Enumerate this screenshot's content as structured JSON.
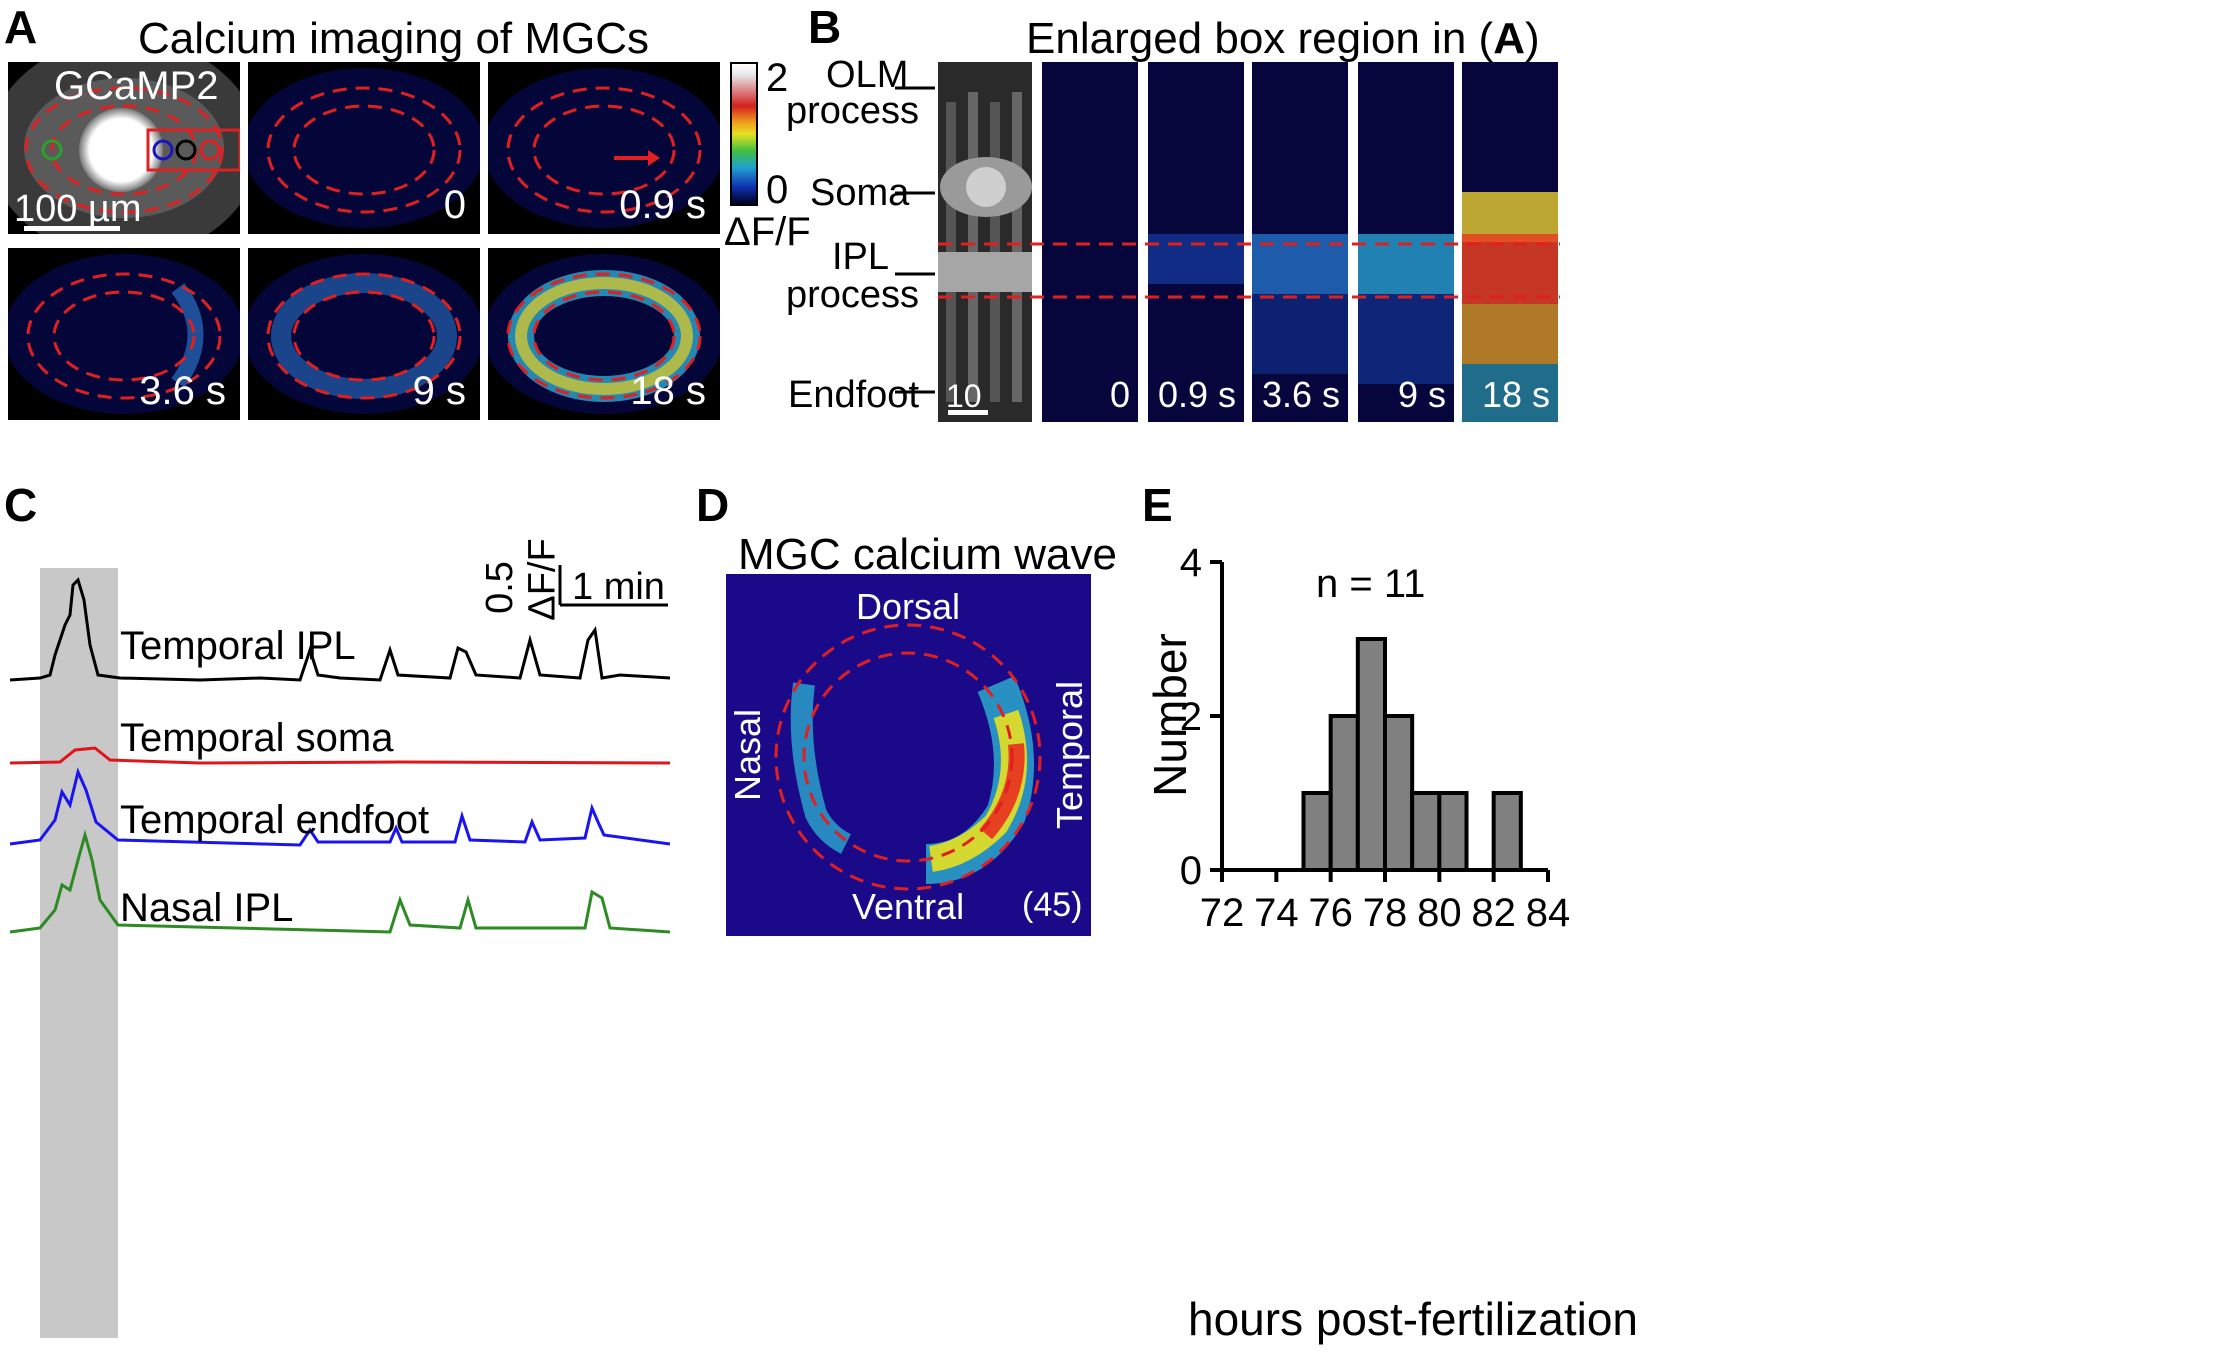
{
  "panels": {
    "A": {
      "label": "A",
      "title": "Calcium imaging of MGCs",
      "overlay_label": "GCaMP2",
      "scale_bar": "100 µm",
      "frames": [
        "0",
        "0.9 s",
        "3.6 s",
        "9 s",
        "18 s"
      ],
      "colorbar": {
        "max": "2",
        "min": "0",
        "unit": "ΔF/F"
      }
    },
    "B": {
      "label": "B",
      "title_prefix": "Enlarged box region in (",
      "title_ref": "A",
      "title_suffix": ")",
      "layers": [
        "OLM",
        "process",
        "Soma",
        "IPL",
        "process",
        "Endfoot"
      ],
      "scale_bar": "10 µm",
      "frames": [
        "0",
        "0.9 s",
        "3.6 s",
        "9 s",
        "18 s"
      ]
    },
    "C": {
      "label": "C",
      "scale_y": "0.5",
      "scale_y_unit": "ΔF/F",
      "scale_x": "1 min",
      "traces": [
        {
          "name": "Temporal IPL",
          "color": "#000000"
        },
        {
          "name": "Temporal soma",
          "color": "#e0141b"
        },
        {
          "name": "Temporal endfoot",
          "color": "#1a14f0"
        },
        {
          "name": "Nasal IPL",
          "color": "#2e8a22"
        }
      ]
    },
    "D": {
      "label": "D",
      "title": "MGC calcium wave",
      "dorsal": "Dorsal",
      "ventral": "Ventral",
      "nasal": "Nasal",
      "temporal": "Temporal",
      "n_label": "(45)"
    },
    "E": {
      "label": "E",
      "n_label": "n = 11"
    }
  },
  "chart_data": {
    "type": "bar",
    "xlabel": "hours post-fertilization",
    "ylabel": "Number",
    "xlim": [
      72,
      84
    ],
    "ylim": [
      0,
      4
    ],
    "xticks": [
      72,
      74,
      76,
      78,
      80,
      82,
      84
    ],
    "yticks": [
      0,
      2,
      4
    ],
    "bin_width": 1,
    "bins": [
      {
        "start": 75,
        "count": 1
      },
      {
        "start": 76,
        "count": 2
      },
      {
        "start": 77,
        "count": 3
      },
      {
        "start": 78,
        "count": 2
      },
      {
        "start": 79,
        "count": 1
      },
      {
        "start": 80,
        "count": 1
      },
      {
        "start": 82,
        "count": 1
      }
    ],
    "bar_color": "#808080"
  }
}
